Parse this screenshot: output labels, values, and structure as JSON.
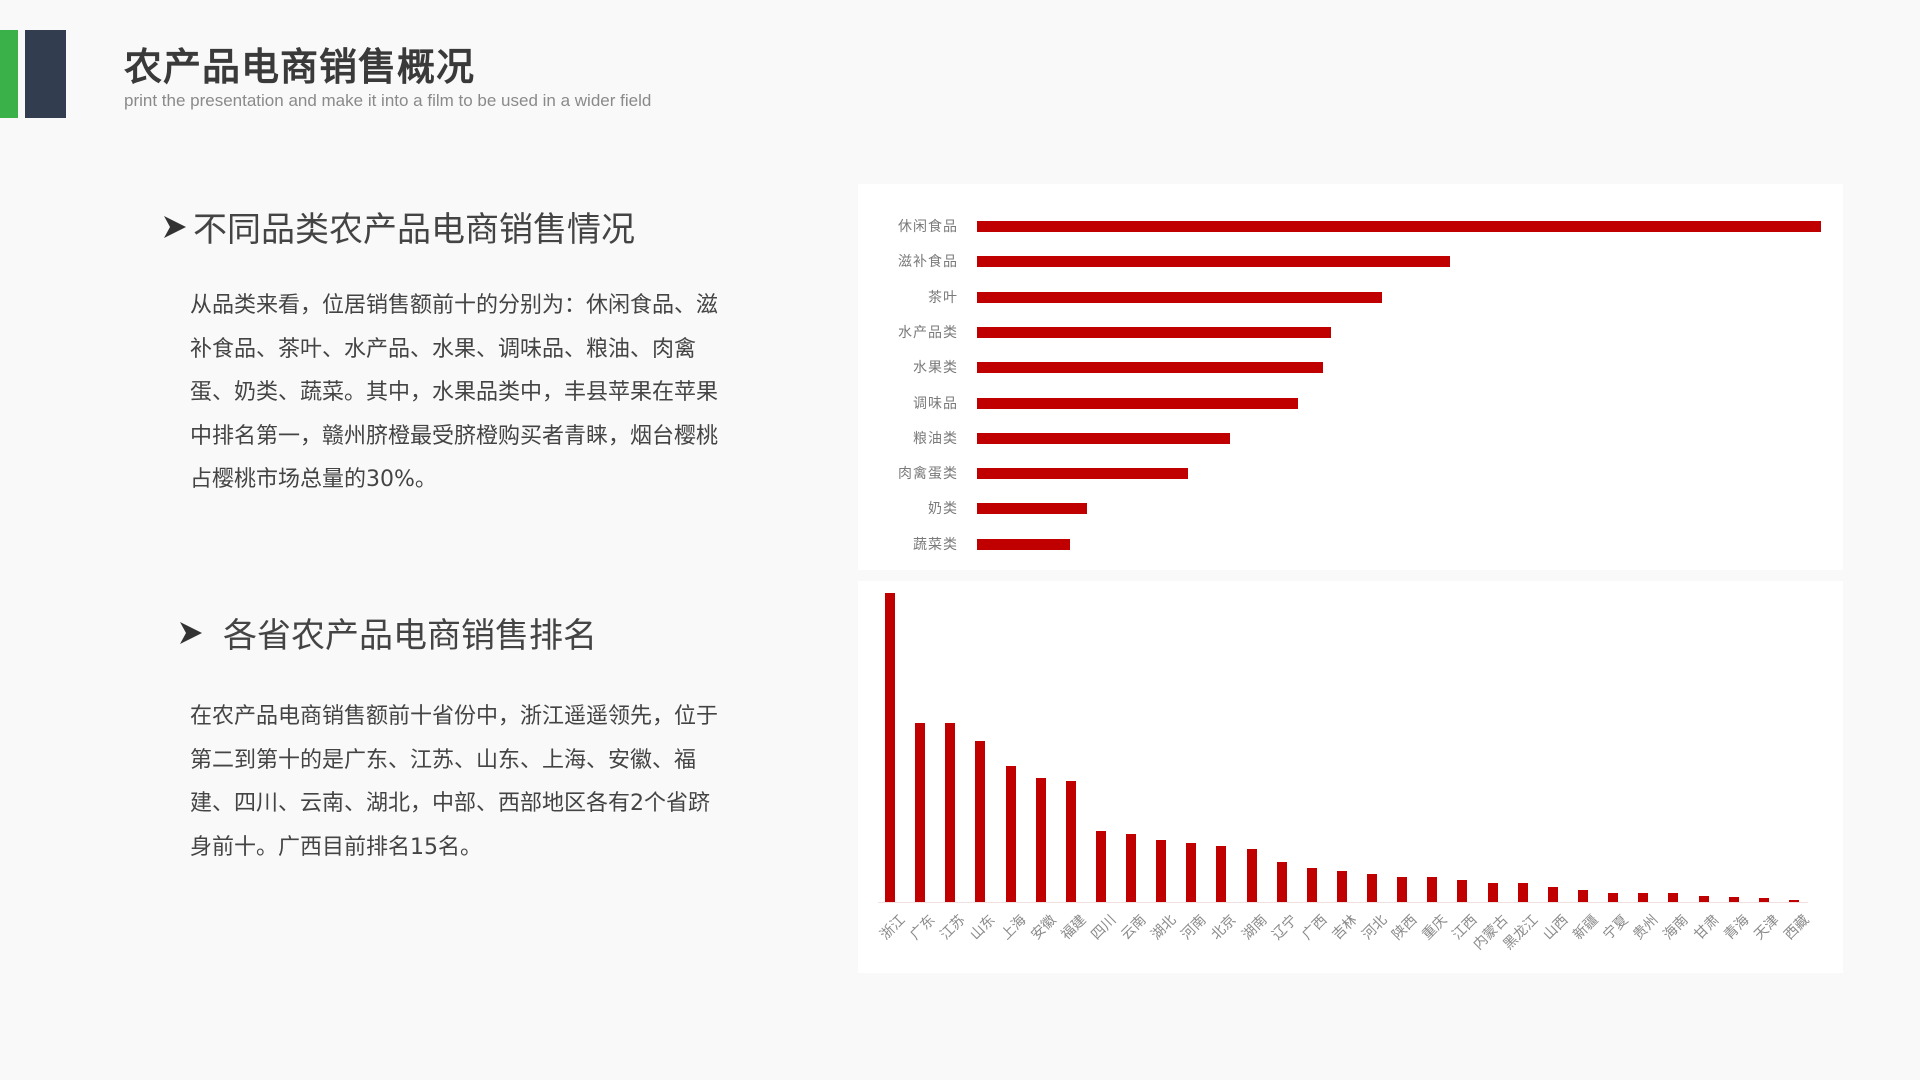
{
  "header": {
    "title": "农产品电商销售概况",
    "subtitle": "print the presentation and make it into a film to be used in a wider field",
    "accent_colors": {
      "green": "#3bb14a",
      "dark": "#323e4f"
    }
  },
  "sections": [
    {
      "heading": "不同品类农产品电商销售情况",
      "bullet_icon": "arrow-bullet-icon",
      "body": "从品类来看，位居销售额前十的分别为：休闲食品、滋补食品、茶叶、水产品、水果、调味品、粮油、肉禽蛋、奶类、蔬菜。其中，水果品类中，丰县苹果在苹果中排名第一，赣州脐橙最受脐橙购买者青睐，烟台樱桃占樱桃市场总量的30%。"
    },
    {
      "heading": "各省农产品电商销售排名",
      "bullet_icon": "arrow-bullet-icon",
      "body": "在农产品电商销售额前十省份中，浙江遥遥领先，位于第二到第十的是广东、江苏、山东、上海、安徽、福建、四川、云南、湖北，中部、西部地区各有2个省跻身前十。广西目前排名15名。"
    }
  ],
  "chart_data": [
    {
      "type": "bar",
      "orientation": "horizontal",
      "title": "",
      "xlabel": "",
      "ylabel": "",
      "grid": false,
      "legend": null,
      "bar_color": "#c00000",
      "categories": [
        "休闲食品",
        "滋补食品",
        "茶叶",
        "水产品类",
        "水果类",
        "调味品",
        "粮油类",
        "肉禽蛋类",
        "奶类",
        "蔬菜类"
      ],
      "values": [
        100,
        56,
        48,
        42,
        41,
        38,
        30,
        25,
        13,
        11
      ],
      "value_note": "relative lengths (longest = 100); no axis shown"
    },
    {
      "type": "bar",
      "orientation": "vertical",
      "title": "",
      "xlabel": "",
      "ylabel": "",
      "grid": false,
      "legend": null,
      "bar_color": "#c00000",
      "categories": [
        "浙江",
        "广东",
        "江苏",
        "山东",
        "上海",
        "安徽",
        "福建",
        "四川",
        "云南",
        "湖北",
        "河南",
        "北京",
        "湖南",
        "辽宁",
        "广西",
        "吉林",
        "河北",
        "陕西",
        "重庆",
        "江西",
        "内蒙古",
        "黑龙江",
        "山西",
        "新疆",
        "宁夏",
        "贵州",
        "海南",
        "甘肃",
        "青海",
        "天津",
        "西藏"
      ],
      "values": [
        100,
        58,
        58,
        52,
        44,
        40,
        39,
        23,
        22,
        20,
        19,
        18,
        17,
        13,
        11,
        10,
        9,
        8,
        8,
        7,
        6,
        6,
        5,
        4,
        3,
        3,
        3,
        2,
        1.5,
        1.3,
        0.7
      ],
      "value_note": "relative heights (tallest = 100); no axis shown"
    }
  ]
}
